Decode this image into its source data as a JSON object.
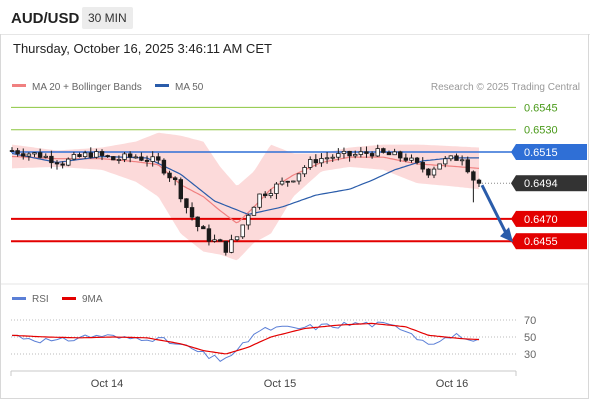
{
  "header": {
    "symbol": "AUD/USD",
    "timeframe": "30 MIN"
  },
  "timestamp": "Thursday, October 16, 2025 3:46:11 AM CET",
  "legend": {
    "ma20_label": "MA 20 + Bollinger Bands",
    "ma50_label": "MA 50",
    "credit": "Research © 2025 Trading Central",
    "rsi_label": "RSI",
    "rsi_ma_label": "9MA"
  },
  "colors": {
    "ma20": "#f08080",
    "bands_fill": "#fbd3d3",
    "ma50": "#2a5caa",
    "resistance": "#8cc63f",
    "pivot": "#2f6fd6",
    "support": "#e30000",
    "candle": "#1a1a1a",
    "price_tag": "#333333",
    "arrow": "#2a5caa",
    "rsi_line": "#5b7fd6",
    "rsi_ma": "#e30000"
  },
  "chart_data": [
    {
      "type": "candlestick",
      "title": "",
      "x_tick_labels": [
        "Oct 14",
        "Oct 15",
        "Oct 16"
      ],
      "bar_count": 84,
      "close_path": [
        [
          0,
          0.6516
        ],
        [
          5,
          0.6513
        ],
        [
          9,
          0.6508
        ],
        [
          14,
          0.6514
        ],
        [
          18,
          0.651
        ],
        [
          22,
          0.6512
        ],
        [
          26,
          0.6508
        ],
        [
          29,
          0.6495
        ],
        [
          31,
          0.6478
        ],
        [
          33,
          0.6465
        ],
        [
          35,
          0.6457
        ],
        [
          37,
          0.6453
        ],
        [
          38,
          0.645
        ],
        [
          40,
          0.6458
        ],
        [
          42,
          0.6474
        ],
        [
          44,
          0.6486
        ],
        [
          46,
          0.649
        ],
        [
          48,
          0.6494
        ],
        [
          50,
          0.6498
        ],
        [
          52,
          0.6505
        ],
        [
          54,
          0.651
        ],
        [
          57,
          0.6512
        ],
        [
          61,
          0.6513
        ],
        [
          64,
          0.6515
        ],
        [
          67,
          0.6513
        ],
        [
          70,
          0.6511
        ],
        [
          72,
          0.6506
        ],
        [
          74,
          0.6502
        ],
        [
          76,
          0.6508
        ],
        [
          78,
          0.651
        ],
        [
          80,
          0.6512
        ],
        [
          82,
          0.6497
        ],
        [
          83,
          0.6494
        ]
      ],
      "ma50_path": [
        [
          0,
          0.6514
        ],
        [
          8,
          0.6508
        ],
        [
          16,
          0.6512
        ],
        [
          24,
          0.6511
        ],
        [
          30,
          0.65
        ],
        [
          36,
          0.6482
        ],
        [
          42,
          0.6473
        ],
        [
          48,
          0.6478
        ],
        [
          54,
          0.6486
        ],
        [
          60,
          0.649
        ],
        [
          64,
          0.6496
        ],
        [
          68,
          0.6503
        ],
        [
          73,
          0.6509
        ],
        [
          78,
          0.6511
        ],
        [
          83,
          0.6511
        ]
      ],
      "bands_upper": [
        [
          0,
          0.652
        ],
        [
          8,
          0.6516
        ],
        [
          16,
          0.6518
        ],
        [
          22,
          0.6522
        ],
        [
          26,
          0.6528
        ],
        [
          30,
          0.6526
        ],
        [
          34,
          0.6522
        ],
        [
          37,
          0.6505
        ],
        [
          40,
          0.6492
        ],
        [
          43,
          0.6502
        ],
        [
          46,
          0.652
        ],
        [
          50,
          0.6514
        ],
        [
          55,
          0.6514
        ],
        [
          60,
          0.6518
        ],
        [
          66,
          0.652
        ],
        [
          72,
          0.652
        ],
        [
          78,
          0.6519
        ],
        [
          83,
          0.6518
        ]
      ],
      "bands_lower": [
        [
          0,
          0.6504
        ],
        [
          8,
          0.6505
        ],
        [
          16,
          0.6503
        ],
        [
          22,
          0.6495
        ],
        [
          26,
          0.6485
        ],
        [
          30,
          0.646
        ],
        [
          34,
          0.6448
        ],
        [
          37,
          0.6446
        ],
        [
          40,
          0.6442
        ],
        [
          43,
          0.6454
        ],
        [
          46,
          0.646
        ],
        [
          50,
          0.6485
        ],
        [
          55,
          0.6502
        ],
        [
          60,
          0.6505
        ],
        [
          66,
          0.6503
        ],
        [
          72,
          0.6494
        ],
        [
          78,
          0.6492
        ],
        [
          83,
          0.649
        ]
      ],
      "levels": [
        {
          "label": "0.6545",
          "value": 0.6545,
          "kind": "resistance"
        },
        {
          "label": "0.6530",
          "value": 0.653,
          "kind": "resistance"
        },
        {
          "label": "0.6515",
          "value": 0.6515,
          "kind": "pivot"
        },
        {
          "label": "0.6494",
          "value": 0.6494,
          "kind": "last"
        },
        {
          "label": "0.6470",
          "value": 0.647,
          "kind": "support"
        },
        {
          "label": "0.6455",
          "value": 0.6455,
          "kind": "support"
        }
      ],
      "forecast_arrow": {
        "from_value": 0.6494,
        "to_value": 0.6455
      }
    },
    {
      "type": "line",
      "title": "RSI",
      "y_ticks": [
        70,
        50,
        30
      ],
      "ylim": [
        20,
        80
      ],
      "rsi_path": [
        [
          0,
          52
        ],
        [
          4,
          48
        ],
        [
          8,
          44
        ],
        [
          12,
          50
        ],
        [
          16,
          52
        ],
        [
          20,
          48
        ],
        [
          24,
          50
        ],
        [
          28,
          44
        ],
        [
          32,
          36
        ],
        [
          35,
          26
        ],
        [
          37,
          24
        ],
        [
          40,
          32
        ],
        [
          43,
          54
        ],
        [
          46,
          60
        ],
        [
          50,
          60
        ],
        [
          54,
          62
        ],
        [
          58,
          64
        ],
        [
          62,
          66
        ],
        [
          66,
          64
        ],
        [
          70,
          60
        ],
        [
          72,
          50
        ],
        [
          74,
          44
        ],
        [
          78,
          50
        ],
        [
          80,
          52
        ],
        [
          82,
          42
        ],
        [
          83,
          44
        ]
      ],
      "rsi_ma_path": [
        [
          0,
          52
        ],
        [
          6,
          50
        ],
        [
          12,
          49
        ],
        [
          18,
          50
        ],
        [
          24,
          49
        ],
        [
          30,
          42
        ],
        [
          34,
          34
        ],
        [
          38,
          30
        ],
        [
          42,
          38
        ],
        [
          46,
          50
        ],
        [
          52,
          60
        ],
        [
          58,
          64
        ],
        [
          64,
          66
        ],
        [
          70,
          62
        ],
        [
          74,
          52
        ],
        [
          80,
          48
        ],
        [
          83,
          47
        ]
      ]
    }
  ]
}
